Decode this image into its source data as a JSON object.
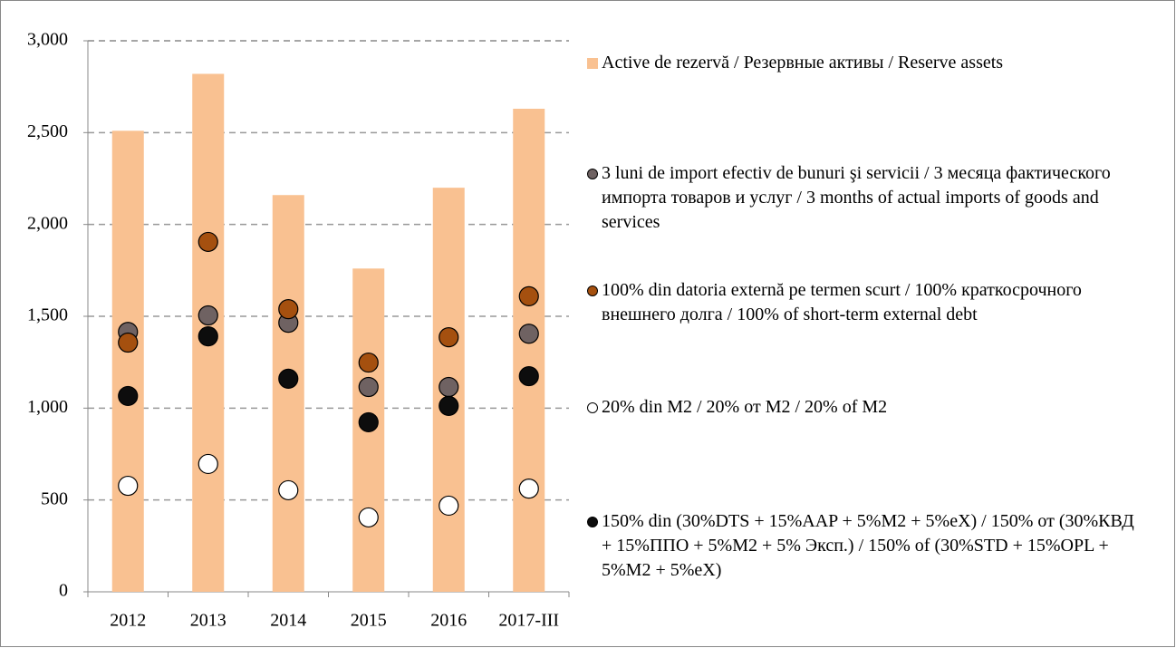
{
  "chart_data": {
    "type": "bar",
    "categories": [
      "2012",
      "2013",
      "2014",
      "2015",
      "2016",
      "2017-III"
    ],
    "series": [
      {
        "name": "Active de rezervă / Резервные активы / Reserve assets",
        "type": "bar",
        "color": "#f9c191",
        "values": [
          2510,
          2820,
          2160,
          1760,
          2200,
          2630
        ]
      },
      {
        "name": "3 luni de import efectiv de bunuri şi servicii / 3 месяца фактического импорта товаров и услуг / 3 months of actual imports of goods and services",
        "type": "scatter",
        "color": "#6f6262",
        "values": [
          1415,
          1505,
          1465,
          1115,
          1115,
          1405
        ]
      },
      {
        "name": "100% din datoria externă pe termen scurt / 100% краткосрочного внешнего долга / 100% of short-term external debt",
        "type": "scatter",
        "color": "#a5500f",
        "values": [
          1357,
          1905,
          1539,
          1248,
          1386,
          1609
        ]
      },
      {
        "name": "20% din M2 / 20% от M2 / 20% of M2",
        "type": "scatter",
        "color": "#ffffff",
        "values": [
          577,
          696,
          553,
          405,
          469,
          562
        ]
      },
      {
        "name": "150% din (30%DTS + 15%AAP + 5%M2 + 5%eX) / 150% от (30%КВД  + 15%ППО + 5%M2 + 5% Эксп.) / 150% of (30%STD + 15%OPL + 5%M2 + 5%eX)",
        "type": "scatter",
        "color": "#0d0d0d",
        "values": [
          1066,
          1391,
          1160,
          923,
          1012,
          1174
        ]
      }
    ],
    "ylim": [
      0,
      3000
    ],
    "yticks": [
      0,
      {
        "value": 500,
        "label": "500"
      },
      {
        "value": 1000,
        "label": "1,000"
      },
      {
        "value": 1500,
        "label": "1,500"
      },
      {
        "value": 2000,
        "label": "2,000"
      },
      {
        "value": 2500,
        "label": "2,500"
      },
      {
        "value": 3000,
        "label": "3,000"
      }
    ],
    "grid": true
  }
}
